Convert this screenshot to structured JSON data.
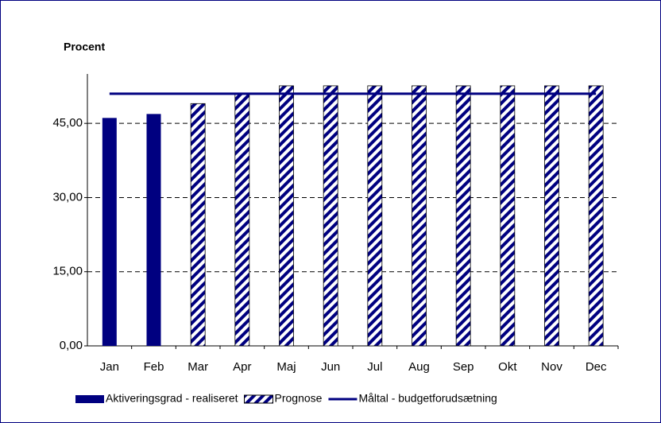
{
  "chart_data": {
    "type": "bar",
    "y_label": "Procent",
    "categories": [
      "Jan",
      "Feb",
      "Mar",
      "Apr",
      "Maj",
      "Jun",
      "Jul",
      "Aug",
      "Sep",
      "Okt",
      "Nov",
      "Dec"
    ],
    "series": [
      {
        "name": "Aktiveringsgrad - realiseret",
        "color": "#000080",
        "style": "solid",
        "values": [
          46.1,
          46.9,
          null,
          null,
          null,
          null,
          null,
          null,
          null,
          null,
          null,
          null
        ]
      },
      {
        "name": "Prognose",
        "color": "#000080",
        "style": "striped",
        "values": [
          null,
          null,
          49.0,
          51.1,
          52.6,
          52.6,
          52.6,
          52.6,
          52.6,
          52.6,
          52.6,
          52.6
        ]
      },
      {
        "name": "Måltal - budgetforudsætning",
        "color": "#000080",
        "style": "line",
        "values": [
          51,
          51,
          51,
          51,
          51,
          51,
          51,
          51,
          51,
          51,
          51,
          51
        ]
      }
    ],
    "ylim": [
      0,
      55
    ],
    "yticks": [
      {
        "value": 0,
        "label": "0,00"
      },
      {
        "value": 15,
        "label": "15,00"
      },
      {
        "value": 30,
        "label": "30,00"
      },
      {
        "value": 45,
        "label": "45,00"
      }
    ],
    "grid": true
  }
}
